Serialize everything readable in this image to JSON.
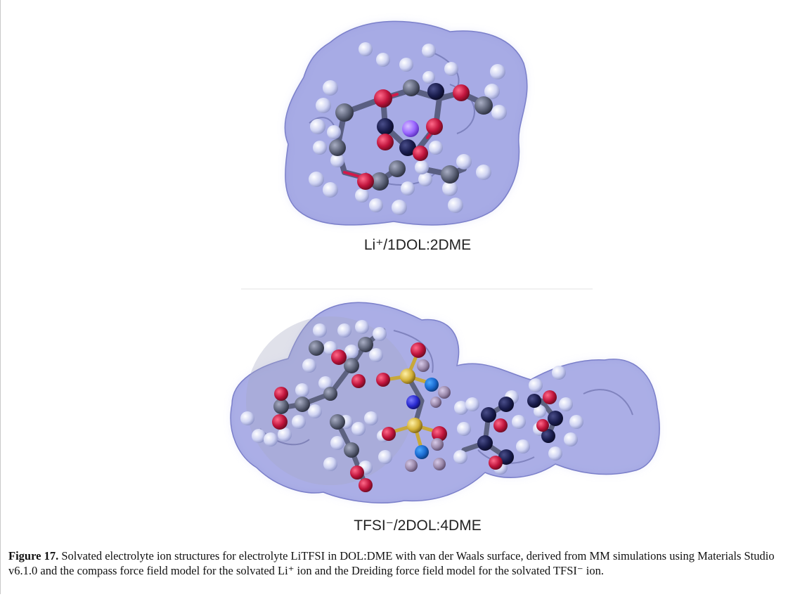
{
  "figure": {
    "panels": [
      {
        "label": "Li⁺/1DOL:2DME"
      },
      {
        "label": "TFSI⁻/2DOL:4DME"
      }
    ]
  },
  "caption": {
    "label": "Figure 17.",
    "text": "Solvated electrolyte ion structures for electrolyte LiTFSI in DOL:DME with van der Waals surface, derived from MM simulations using Materials Studio v6.1.0 and the compass force field model for the solvated Li⁺ ion and the Dreiding force field model for the solvated TFSI⁻ ion."
  },
  "colors": {
    "surface": "#8a8fdc",
    "oxygen": "#c0143c",
    "carbon": "#5d6378",
    "hydrogen": "#d8dcf5",
    "lithium": "#9a66ff",
    "sulfur": "#d4b23a",
    "nitrogen": "#2a2ad0",
    "fluorine": "#9a88aa"
  }
}
